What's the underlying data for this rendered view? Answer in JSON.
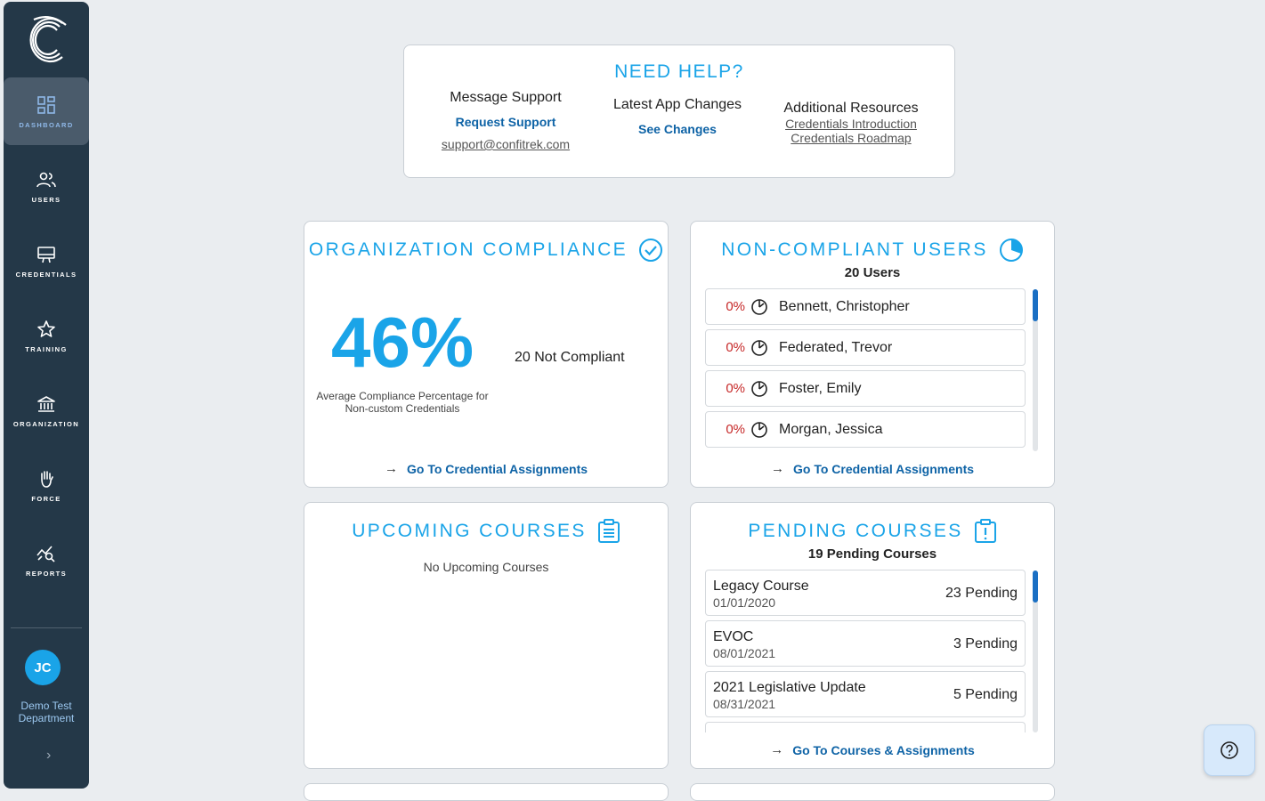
{
  "sidebar": {
    "items": [
      {
        "label": "DASHBOARD",
        "icon": "dashboard-icon",
        "active": true
      },
      {
        "label": "USERS",
        "icon": "users-icon"
      },
      {
        "label": "CREDENTIALS",
        "icon": "credentials-icon"
      },
      {
        "label": "TRAINING",
        "icon": "star-icon"
      },
      {
        "label": "ORGANIZATION",
        "icon": "bank-icon"
      },
      {
        "label": "FORCE",
        "icon": "hand-icon"
      },
      {
        "label": "REPORTS",
        "icon": "reports-icon"
      }
    ],
    "avatar_initials": "JC",
    "department": "Demo Test Department"
  },
  "help": {
    "title": "NEED HELP?",
    "message_support": "Message Support",
    "request_support": "Request Support",
    "email": "support@confitrek.com",
    "latest_changes": "Latest App Changes",
    "see_changes": "See Changes",
    "additional_resources": "Additional Resources",
    "resource_1": "Credentials Introduction",
    "resource_2": "Credentials Roadmap"
  },
  "org_compliance": {
    "title": "ORGANIZATION COMPLIANCE",
    "percentage": "46%",
    "note": "Average Compliance Percentage for Non-custom Credentials",
    "not_compliant": "20 Not Compliant",
    "link": "Go To Credential Assignments"
  },
  "non_compliant": {
    "title": "NON-COMPLIANT USERS",
    "count": "20 Users",
    "users": [
      {
        "pct": "0%",
        "name": "Bennett, Christopher"
      },
      {
        "pct": "0%",
        "name": "Federated, Trevor"
      },
      {
        "pct": "0%",
        "name": "Foster, Emily"
      },
      {
        "pct": "0%",
        "name": "Morgan, Jessica"
      }
    ],
    "link": "Go To Credential Assignments"
  },
  "upcoming": {
    "title": "UPCOMING COURSES",
    "empty": "No Upcoming Courses"
  },
  "pending": {
    "title": "PENDING COURSES",
    "count": "19 Pending Courses",
    "courses": [
      {
        "name": "Legacy Course",
        "date": "01/01/2020",
        "pending": "23 Pending"
      },
      {
        "name": "EVOC",
        "date": "08/01/2021",
        "pending": "3 Pending"
      },
      {
        "name": "2021 Legislative Update",
        "date": "08/31/2021",
        "pending": "5 Pending"
      }
    ],
    "link": "Go To Courses & Assignments"
  }
}
